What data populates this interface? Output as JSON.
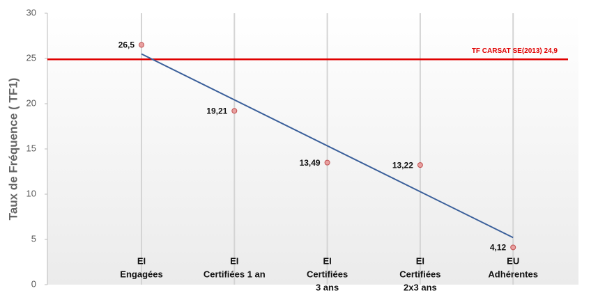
{
  "chart_data": {
    "type": "scatter",
    "y_label": "Taux de Fréquence ( TF1)",
    "categories": [
      [
        "EI",
        "Engagées"
      ],
      [
        "EI",
        "Certifiées 1 an"
      ],
      [
        "EI",
        "Certifiées",
        "3 ans"
      ],
      [
        "EI",
        "Certifiées",
        "2x3 ans"
      ],
      [
        "EU",
        "Adhérentes"
      ]
    ],
    "values": [
      26.5,
      19.21,
      13.49,
      13.22,
      4.12
    ],
    "value_labels": [
      "26,5",
      "19,21",
      "13,49",
      "13,22",
      "4,12"
    ],
    "color": "#e8a0a0",
    "trendline": {
      "color": "#3a5f9a",
      "values": [
        25.5,
        5.2
      ]
    },
    "reference_line": {
      "value": 24.9,
      "label": "TF CARSAT SE(2013) 24,9",
      "color": "#e00000"
    },
    "ylim": [
      0,
      30
    ],
    "yticks": [
      0,
      5,
      10,
      15,
      20,
      25,
      30
    ],
    "grid": true
  }
}
